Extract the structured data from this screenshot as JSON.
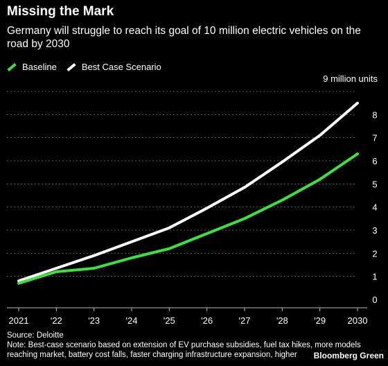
{
  "header": {
    "title": "Missing the Mark",
    "subtitle": "Germany will struggle to reach its goal of 10 million electric vehicles on the road by 2030"
  },
  "colors": {
    "background": "#000000",
    "baseline": "#39e339",
    "best_case": "#ffffff",
    "grid": "#5a5a5a"
  },
  "chart_data": {
    "type": "line",
    "title": "Missing the Mark",
    "subtitle": "Germany will struggle to reach its goal of 10 million electric vehicles on the road by 2030",
    "unit_label": "9 million units",
    "x": [
      "2021",
      "'22",
      "'23",
      "'24",
      "'25",
      "'26",
      "'27",
      "'28",
      "'29",
      "2030"
    ],
    "y_ticks": [
      0,
      1,
      2,
      3,
      4,
      5,
      6,
      7,
      8
    ],
    "ylim": [
      0,
      9
    ],
    "grid": true,
    "legend_position": "top-left",
    "series": [
      {
        "name": "Baseline",
        "color": "#39e339",
        "values": [
          0.7,
          1.2,
          1.35,
          1.8,
          2.2,
          2.85,
          3.5,
          4.3,
          5.2,
          6.3
        ]
      },
      {
        "name": "Best Case Scenario",
        "color": "#ffffff",
        "values": [
          0.8,
          1.35,
          1.9,
          2.5,
          3.1,
          3.95,
          4.85,
          5.95,
          7.1,
          8.5
        ]
      }
    ]
  },
  "footer": {
    "source": "Source: Deloitte",
    "note": "Note: Best-case scenario based on extension of EV purchase subsidies, fuel tax hikes, more models reaching market, battery cost falls, faster charging infrastructure expansion, higher",
    "brand": "Bloomberg Green"
  }
}
